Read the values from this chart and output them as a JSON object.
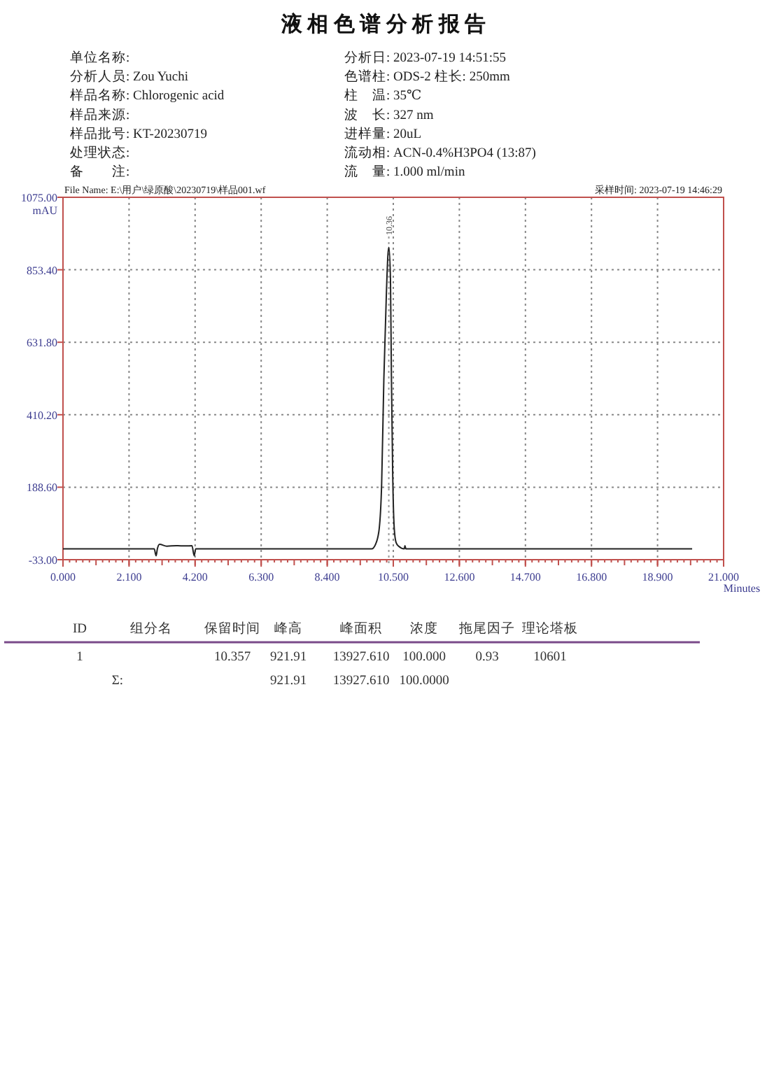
{
  "chart_data": {
    "type": "line",
    "title": "液 相 色 谱 分 析 报 告",
    "xlabel": "Minutes",
    "ylabel": "mAU",
    "xlim": [
      0,
      21
    ],
    "ylim": [
      -33,
      1075
    ],
    "xticks": [
      {
        "value": 0,
        "label": "0.000"
      },
      {
        "value": 2.1,
        "label": "2.100"
      },
      {
        "value": 4.2,
        "label": "4.200"
      },
      {
        "value": 6.3,
        "label": "6.300"
      },
      {
        "value": 8.4,
        "label": "8.400"
      },
      {
        "value": 10.5,
        "label": "10.500"
      },
      {
        "value": 12.6,
        "label": "12.600"
      },
      {
        "value": 14.7,
        "label": "14.700"
      },
      {
        "value": 16.8,
        "label": "16.800"
      },
      {
        "value": 18.9,
        "label": "18.900"
      },
      {
        "value": 21,
        "label": "21.000"
      }
    ],
    "yticks": [
      {
        "value": -33,
        "label": "-33.00"
      },
      {
        "value": 188.6,
        "label": "188.60"
      },
      {
        "value": 410.2,
        "label": "410.20"
      },
      {
        "value": 631.8,
        "label": "631.80"
      },
      {
        "value": 853.4,
        "label": "853.40"
      },
      {
        "value": 1075,
        "label": "1075.00"
      }
    ],
    "grid": true,
    "series": [
      {
        "color": "#222222",
        "x": [
          0,
          2.9,
          2.96,
          3.0,
          3.07,
          3.3,
          3.6,
          3.9,
          4.1,
          4.17,
          4.22,
          9.81,
          9.94,
          10.05,
          10.13,
          10.2,
          10.28,
          10.33,
          10.36,
          10.41,
          10.44,
          10.48,
          10.53,
          10.59,
          10.67,
          10.85,
          10.87,
          10.9,
          20.0
        ],
        "values": [
          0,
          0,
          -21,
          0,
          14,
          8,
          10,
          9,
          10,
          -21,
          0,
          0,
          15,
          60,
          200,
          520,
          780,
          900,
          921.91,
          826,
          530,
          234,
          63,
          19,
          8,
          0,
          10,
          0,
          0
        ]
      }
    ],
    "ref_lines": [
      {
        "axis": "x",
        "value": 10.357,
        "label": "10.36",
        "line_style": "dotted",
        "color": "#999999"
      }
    ],
    "annotations": [
      "单位名称:",
      "分析人员: Zou Yuchi",
      "样品名称: Chlorogenic acid",
      "样品来源:",
      "样品批号: KT-20230719",
      "处理状态:",
      "备　　注:",
      "分析日: 2023-07-19 14:51:55",
      "色谱柱: ODS-2 柱长: 250mm",
      "柱　温: 35℃",
      "波　长: 327 nm",
      "进样量: 20uL",
      "流动相: ACN-0.4%H3PO4 (13:87)",
      "流　量: 1.000 ml/min",
      "File Name: E:\\用户\\绿原酸\\20230719\\样品001.wf",
      "采样时间: 2023-07-19 14:46:29",
      "ID",
      "组分名",
      "保留时间",
      "峰高",
      "峰面积",
      "浓度",
      "拖尾因子",
      "理论塔板",
      "1",
      "10.357",
      "921.91",
      "13927.610",
      "100.000",
      "0.93",
      "10601",
      "Σ:",
      "921.91",
      "13927.610",
      "100.0000"
    ]
  }
}
